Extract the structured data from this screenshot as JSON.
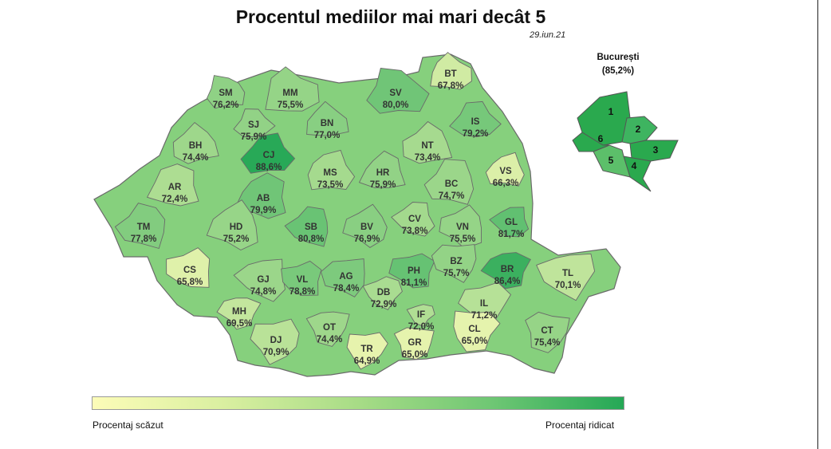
{
  "title": "Procentul mediilor mai mari decât 5",
  "date": "29.iun.21",
  "bucharest": {
    "title": "București",
    "value": "(85,2%)",
    "sectors": [
      "1",
      "2",
      "3",
      "4",
      "5",
      "6"
    ]
  },
  "legend": {
    "low_label": "Procentaj scăzut",
    "high_label": "Procentaj ridicat",
    "colors": [
      "#fcfcb8",
      "#25a856"
    ]
  },
  "counties": [
    {
      "code": "SM",
      "value": "76,2%",
      "pct": 76.2
    },
    {
      "code": "MM",
      "value": "75,5%",
      "pct": 75.5
    },
    {
      "code": "SV",
      "value": "80,0%",
      "pct": 80.0
    },
    {
      "code": "BT",
      "value": "67,8%",
      "pct": 67.8
    },
    {
      "code": "SJ",
      "value": "75,9%",
      "pct": 75.9
    },
    {
      "code": "BN",
      "value": "77,0%",
      "pct": 77.0
    },
    {
      "code": "IS",
      "value": "79,2%",
      "pct": 79.2
    },
    {
      "code": "BH",
      "value": "74,4%",
      "pct": 74.4
    },
    {
      "code": "CJ",
      "value": "88,6%",
      "pct": 88.6
    },
    {
      "code": "NT",
      "value": "73,4%",
      "pct": 73.4
    },
    {
      "code": "MS",
      "value": "73,5%",
      "pct": 73.5
    },
    {
      "code": "HR",
      "value": "75,9%",
      "pct": 75.9
    },
    {
      "code": "VS",
      "value": "66,3%",
      "pct": 66.3
    },
    {
      "code": "AR",
      "value": "72,4%",
      "pct": 72.4
    },
    {
      "code": "BC",
      "value": "74,7%",
      "pct": 74.7
    },
    {
      "code": "AB",
      "value": "79,9%",
      "pct": 79.9
    },
    {
      "code": "TM",
      "value": "77,8%",
      "pct": 77.8
    },
    {
      "code": "HD",
      "value": "75,2%",
      "pct": 75.2
    },
    {
      "code": "SB",
      "value": "80,8%",
      "pct": 80.8
    },
    {
      "code": "BV",
      "value": "76,9%",
      "pct": 76.9
    },
    {
      "code": "CV",
      "value": "73,8%",
      "pct": 73.8
    },
    {
      "code": "VN",
      "value": "75,5%",
      "pct": 75.5
    },
    {
      "code": "GL",
      "value": "81,7%",
      "pct": 81.7
    },
    {
      "code": "CS",
      "value": "65,8%",
      "pct": 65.8
    },
    {
      "code": "GJ",
      "value": "74,8%",
      "pct": 74.8
    },
    {
      "code": "VL",
      "value": "78,8%",
      "pct": 78.8
    },
    {
      "code": "AG",
      "value": "78,4%",
      "pct": 78.4
    },
    {
      "code": "PH",
      "value": "81,1%",
      "pct": 81.1
    },
    {
      "code": "BZ",
      "value": "75,7%",
      "pct": 75.7
    },
    {
      "code": "BR",
      "value": "86,4%",
      "pct": 86.4
    },
    {
      "code": "TL",
      "value": "70,1%",
      "pct": 70.1
    },
    {
      "code": "MH",
      "value": "69,5%",
      "pct": 69.5
    },
    {
      "code": "DB",
      "value": "72,9%",
      "pct": 72.9
    },
    {
      "code": "IL",
      "value": "71,2%",
      "pct": 71.2
    },
    {
      "code": "IF",
      "value": "72,0%",
      "pct": 72.0
    },
    {
      "code": "DJ",
      "value": "70,9%",
      "pct": 70.9
    },
    {
      "code": "OT",
      "value": "74,4%",
      "pct": 74.4
    },
    {
      "code": "TR",
      "value": "64,9%",
      "pct": 64.9
    },
    {
      "code": "GR",
      "value": "65,0%",
      "pct": 65.0
    },
    {
      "code": "CL",
      "value": "65,0%",
      "pct": 65.0
    },
    {
      "code": "CT",
      "value": "75,4%",
      "pct": 75.4
    }
  ]
}
